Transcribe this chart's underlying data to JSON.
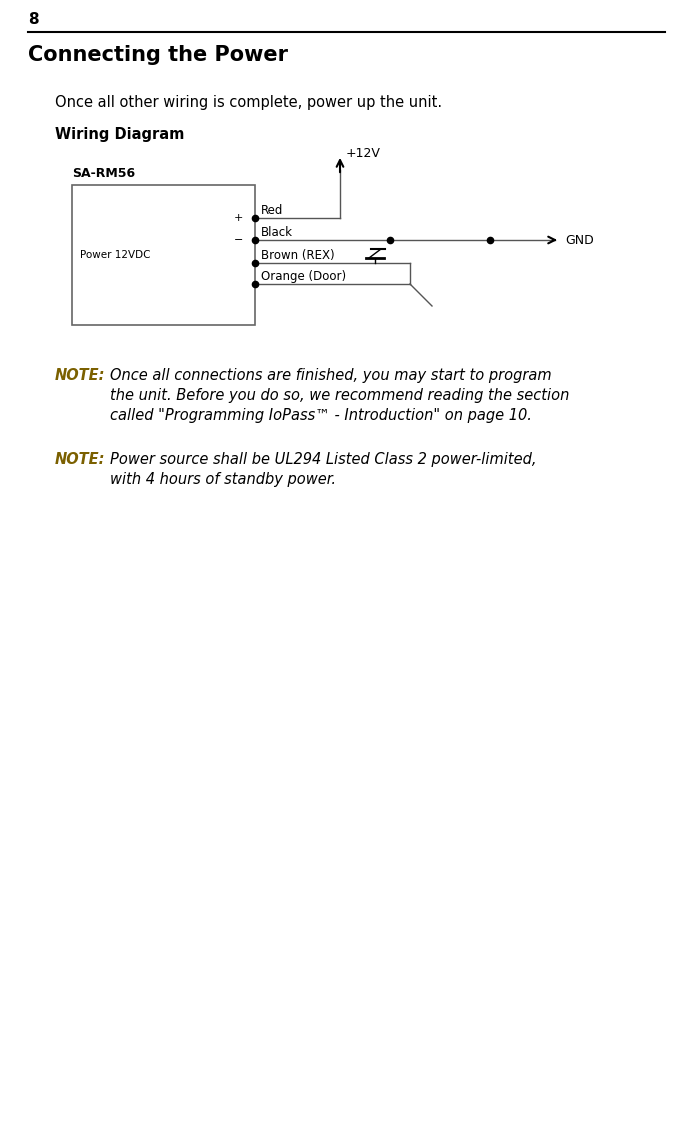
{
  "page_number": "8",
  "title": "Connecting the Power",
  "intro_text": "Once all other wiring is complete, power up the unit.",
  "wiring_diagram_label": "Wiring Diagram",
  "note1_label": "NOTE:",
  "note1_body": "Once all connections are finished, you may start to program\nthe unit. Before you do so, we recommend reading the section\ncalled \"Programming IoPass™ - Introduction\" on page 10.",
  "note2_label": "NOTE:",
  "note2_body": "Power source shall be UL294 Listed Class 2 power-limited,\nwith 4 hours of standby power.",
  "bg_color": "#ffffff",
  "text_color": "#000000",
  "note_label_color": "#7B6000",
  "line_color": "#000000",
  "diagram_line_color": "#555555",
  "title_fontsize": 15,
  "body_fontsize": 10.5,
  "note_fontsize": 10.5,
  "page_num_fontsize": 11,
  "wiring_label_fontsize": 10.5,
  "diagram_fontsize": 8.5
}
